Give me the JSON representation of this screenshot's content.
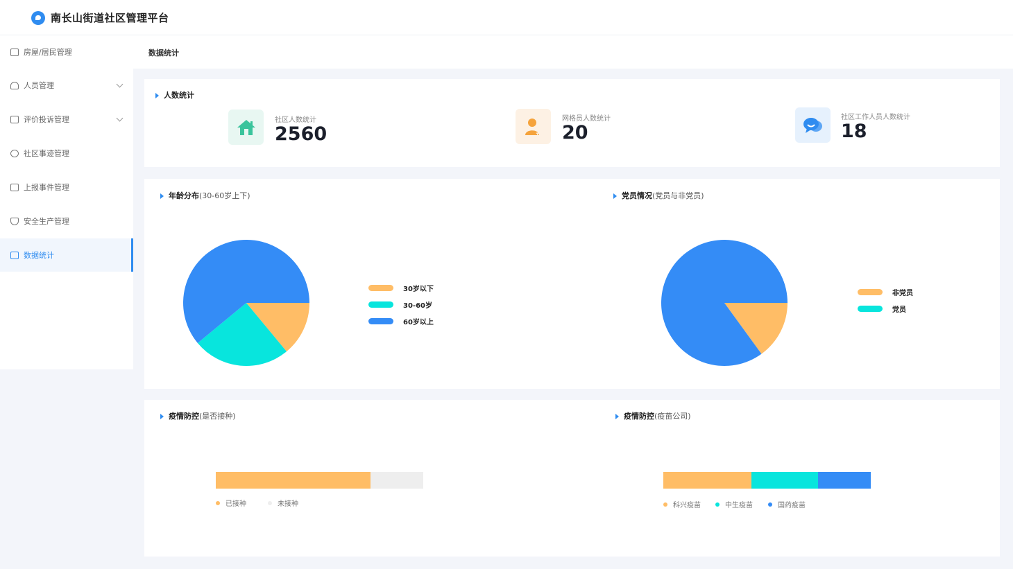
{
  "app": {
    "title": "南长山街道社区管理平台"
  },
  "sidebar": {
    "items": [
      {
        "label": "房屋/居民管理",
        "icon": "building-icon",
        "expandable": false,
        "active": false
      },
      {
        "label": "人员管理",
        "icon": "users-icon",
        "expandable": true,
        "active": false
      },
      {
        "label": "评价投诉管理",
        "icon": "complaint-form-icon",
        "expandable": true,
        "active": false
      },
      {
        "label": "社区事迹管理",
        "icon": "community-record-icon",
        "expandable": false,
        "active": false
      },
      {
        "label": "上报事件管理",
        "icon": "report-icon",
        "expandable": false,
        "active": false
      },
      {
        "label": "安全生产管理",
        "icon": "shield-icon",
        "expandable": false,
        "active": false
      },
      {
        "label": "数据统计",
        "icon": "chart-icon",
        "expandable": false,
        "active": true
      }
    ]
  },
  "breadcrumb": "数据统计",
  "people_stats": {
    "title": "人数统计",
    "cards": [
      {
        "label": "社区人数统计",
        "value": "2560",
        "icon": "house-icon",
        "color": "#3ac49c",
        "bg": "#e8f7f2"
      },
      {
        "label": "网格员人数统计",
        "value": "20",
        "icon": "grid-worker-icon",
        "color": "#f5a33c",
        "bg": "#fdf1e4"
      },
      {
        "label": "社区工作人员人数统计",
        "value": "18",
        "icon": "chat-bubbles-icon",
        "color": "#2f8cf0",
        "bg": "#e6f1fd"
      }
    ]
  },
  "age_section": {
    "title": "年龄分布",
    "subtitle": "(30-60岁上下)"
  },
  "party_section": {
    "title": "党员情况",
    "subtitle": "(党员与非党员)"
  },
  "vaccinated_section": {
    "title": "疫情防控",
    "subtitle": "(是否接种)"
  },
  "vaccine_company_section": {
    "title": "疫情防控",
    "subtitle": "(疫苗公司)"
  },
  "chart_data": [
    {
      "type": "pie",
      "title": "年龄分布",
      "categories": [
        "30岁以下",
        "30-60岁",
        "60岁以上"
      ],
      "values": [
        14,
        25,
        61
      ],
      "colors": [
        "#ffbd66",
        "#08e5dd",
        "#348cf6"
      ],
      "start_angle_deg": 90,
      "legend": "right"
    },
    {
      "type": "pie",
      "title": "党员情况",
      "categories": [
        "非党员",
        "党员"
      ],
      "values": [
        15,
        85
      ],
      "colors": [
        "#ffbd66",
        "#348cf6"
      ],
      "legend_colors": [
        "#ffbd66",
        "#08e5dd"
      ],
      "start_angle_deg": 90,
      "legend": "right"
    },
    {
      "type": "bar",
      "title": "是否接种",
      "orientation": "horizontal-stacked",
      "categories": [
        "已接种",
        "未接种"
      ],
      "values": [
        74.5,
        25.5
      ],
      "colors": [
        "#ffbd66",
        "#eeeeee"
      ],
      "legend": "bottom-left"
    },
    {
      "type": "bar",
      "title": "疫苗公司",
      "orientation": "horizontal-stacked",
      "categories": [
        "科兴疫苗",
        "中生疫苗",
        "国药疫苗"
      ],
      "values": [
        42.5,
        32,
        25.5
      ],
      "colors": [
        "#ffbd66",
        "#08e5dd",
        "#348cf6"
      ],
      "legend": "bottom-left"
    }
  ]
}
